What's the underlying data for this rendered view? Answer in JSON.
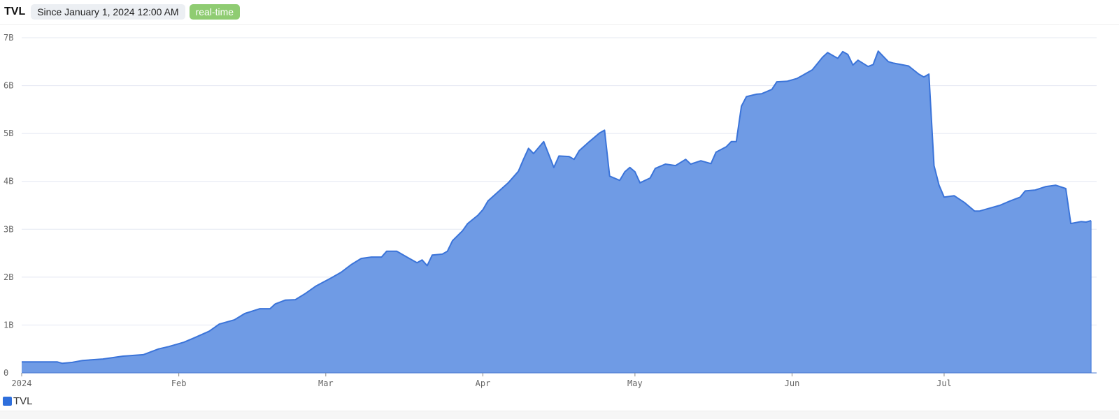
{
  "header": {
    "title": "TVL",
    "since": "Since January 1, 2024 12:00 AM",
    "badge": "real-time"
  },
  "colors": {
    "line": "#3b74d9",
    "fill": "#6f9be5",
    "legend": "#2f6fdc",
    "badge": "#8fcc72",
    "grid": "#e4e8f2"
  },
  "chart_data": {
    "type": "area",
    "title": "TVL",
    "xlabel": "",
    "ylabel": "",
    "ylim": [
      0,
      7000000000
    ],
    "y_ticks": [
      {
        "v": 0,
        "label": "0"
      },
      {
        "v": 1,
        "label": "1B"
      },
      {
        "v": 2,
        "label": "2B"
      },
      {
        "v": 3,
        "label": "3B"
      },
      {
        "v": 4,
        "label": "4B"
      },
      {
        "v": 5,
        "label": "5B"
      },
      {
        "v": 6,
        "label": "6B"
      },
      {
        "v": 7,
        "label": "7B"
      }
    ],
    "y_unit": "B",
    "x_ticks": [
      {
        "d": "2024-01-01",
        "label": "2024"
      },
      {
        "d": "2024-02-01",
        "label": "Feb"
      },
      {
        "d": "2024-03-01",
        "label": "Mar"
      },
      {
        "d": "2024-04-01",
        "label": "Apr"
      },
      {
        "d": "2024-05-01",
        "label": "May"
      },
      {
        "d": "2024-06-01",
        "label": "Jun"
      },
      {
        "d": "2024-07-01",
        "label": "Jul"
      }
    ],
    "grid": true,
    "legend": "bottom-left",
    "series": [
      {
        "name": "TVL",
        "points": [
          [
            "2024-01-01",
            0.23
          ],
          [
            "2024-01-08",
            0.23
          ],
          [
            "2024-01-09",
            0.2
          ],
          [
            "2024-01-11",
            0.22
          ],
          [
            "2024-01-13",
            0.26
          ],
          [
            "2024-01-17",
            0.29
          ],
          [
            "2024-01-21",
            0.35
          ],
          [
            "2024-01-25",
            0.38
          ],
          [
            "2024-01-28",
            0.5
          ],
          [
            "2024-01-30",
            0.55
          ],
          [
            "2024-02-02",
            0.64
          ],
          [
            "2024-02-04",
            0.73
          ],
          [
            "2024-02-07",
            0.87
          ],
          [
            "2024-02-09",
            1.02
          ],
          [
            "2024-02-12",
            1.11
          ],
          [
            "2024-02-14",
            1.24
          ],
          [
            "2024-02-17",
            1.34
          ],
          [
            "2024-02-19",
            1.34
          ],
          [
            "2024-02-20",
            1.44
          ],
          [
            "2024-02-22",
            1.52
          ],
          [
            "2024-02-24",
            1.53
          ],
          [
            "2024-02-26",
            1.66
          ],
          [
            "2024-02-28",
            1.81
          ],
          [
            "2024-03-02",
            1.98
          ],
          [
            "2024-03-04",
            2.1
          ],
          [
            "2024-03-06",
            2.26
          ],
          [
            "2024-03-08",
            2.39
          ],
          [
            "2024-03-10",
            2.42
          ],
          [
            "2024-03-12",
            2.42
          ],
          [
            "2024-03-13",
            2.54
          ],
          [
            "2024-03-15",
            2.54
          ],
          [
            "2024-03-17",
            2.42
          ],
          [
            "2024-03-19",
            2.3
          ],
          [
            "2024-03-20",
            2.36
          ],
          [
            "2024-03-21",
            2.24
          ],
          [
            "2024-03-22",
            2.46
          ],
          [
            "2024-03-24",
            2.48
          ],
          [
            "2024-03-25",
            2.54
          ],
          [
            "2024-03-26",
            2.76
          ],
          [
            "2024-03-28",
            2.97
          ],
          [
            "2024-03-29",
            3.12
          ],
          [
            "2024-03-31",
            3.29
          ],
          [
            "2024-04-01",
            3.41
          ],
          [
            "2024-04-02",
            3.59
          ],
          [
            "2024-04-04",
            3.78
          ],
          [
            "2024-04-06",
            3.97
          ],
          [
            "2024-04-08",
            4.21
          ],
          [
            "2024-04-09",
            4.46
          ],
          [
            "2024-04-10",
            4.69
          ],
          [
            "2024-04-11",
            4.58
          ],
          [
            "2024-04-13",
            4.83
          ],
          [
            "2024-04-15",
            4.29
          ],
          [
            "2024-04-16",
            4.53
          ],
          [
            "2024-04-18",
            4.52
          ],
          [
            "2024-04-19",
            4.46
          ],
          [
            "2024-04-20",
            4.64
          ],
          [
            "2024-04-22",
            4.83
          ],
          [
            "2024-04-24",
            5.01
          ],
          [
            "2024-04-25",
            5.07
          ],
          [
            "2024-04-26",
            4.11
          ],
          [
            "2024-04-28",
            4.02
          ],
          [
            "2024-04-29",
            4.2
          ],
          [
            "2024-04-30",
            4.29
          ],
          [
            "2024-05-01",
            4.2
          ],
          [
            "2024-05-02",
            3.97
          ],
          [
            "2024-05-04",
            4.07
          ],
          [
            "2024-05-05",
            4.27
          ],
          [
            "2024-05-07",
            4.36
          ],
          [
            "2024-05-09",
            4.33
          ],
          [
            "2024-05-11",
            4.46
          ],
          [
            "2024-05-12",
            4.36
          ],
          [
            "2024-05-14",
            4.43
          ],
          [
            "2024-05-16",
            4.37
          ],
          [
            "2024-05-17",
            4.61
          ],
          [
            "2024-05-19",
            4.72
          ],
          [
            "2024-05-20",
            4.83
          ],
          [
            "2024-05-21",
            4.83
          ],
          [
            "2024-05-22",
            5.57
          ],
          [
            "2024-05-23",
            5.77
          ],
          [
            "2024-05-25",
            5.82
          ],
          [
            "2024-05-26",
            5.83
          ],
          [
            "2024-05-28",
            5.92
          ],
          [
            "2024-05-29",
            6.08
          ],
          [
            "2024-05-31",
            6.09
          ],
          [
            "2024-06-02",
            6.15
          ],
          [
            "2024-06-03",
            6.21
          ],
          [
            "2024-06-05",
            6.33
          ],
          [
            "2024-06-07",
            6.59
          ],
          [
            "2024-06-08",
            6.69
          ],
          [
            "2024-06-10",
            6.57
          ],
          [
            "2024-06-11",
            6.71
          ],
          [
            "2024-06-12",
            6.65
          ],
          [
            "2024-06-13",
            6.43
          ],
          [
            "2024-06-14",
            6.53
          ],
          [
            "2024-06-16",
            6.4
          ],
          [
            "2024-06-17",
            6.44
          ],
          [
            "2024-06-18",
            6.72
          ],
          [
            "2024-06-20",
            6.5
          ],
          [
            "2024-06-21",
            6.47
          ],
          [
            "2024-06-23",
            6.43
          ],
          [
            "2024-06-24",
            6.41
          ],
          [
            "2024-06-26",
            6.24
          ],
          [
            "2024-06-27",
            6.18
          ],
          [
            "2024-06-28",
            6.24
          ],
          [
            "2024-06-29",
            4.33
          ],
          [
            "2024-06-30",
            3.92
          ],
          [
            "2024-07-01",
            3.67
          ],
          [
            "2024-07-03",
            3.7
          ],
          [
            "2024-07-05",
            3.56
          ],
          [
            "2024-07-07",
            3.38
          ],
          [
            "2024-07-08",
            3.38
          ],
          [
            "2024-07-10",
            3.44
          ],
          [
            "2024-07-12",
            3.5
          ],
          [
            "2024-07-14",
            3.59
          ],
          [
            "2024-07-16",
            3.67
          ],
          [
            "2024-07-17",
            3.8
          ],
          [
            "2024-07-19",
            3.82
          ],
          [
            "2024-07-21",
            3.89
          ],
          [
            "2024-07-23",
            3.92
          ],
          [
            "2024-07-25",
            3.85
          ],
          [
            "2024-07-26",
            3.12
          ],
          [
            "2024-07-28",
            3.16
          ],
          [
            "2024-07-29",
            3.15
          ],
          [
            "2024-07-30",
            3.18
          ]
        ]
      }
    ]
  },
  "legend": {
    "label": "TVL"
  }
}
